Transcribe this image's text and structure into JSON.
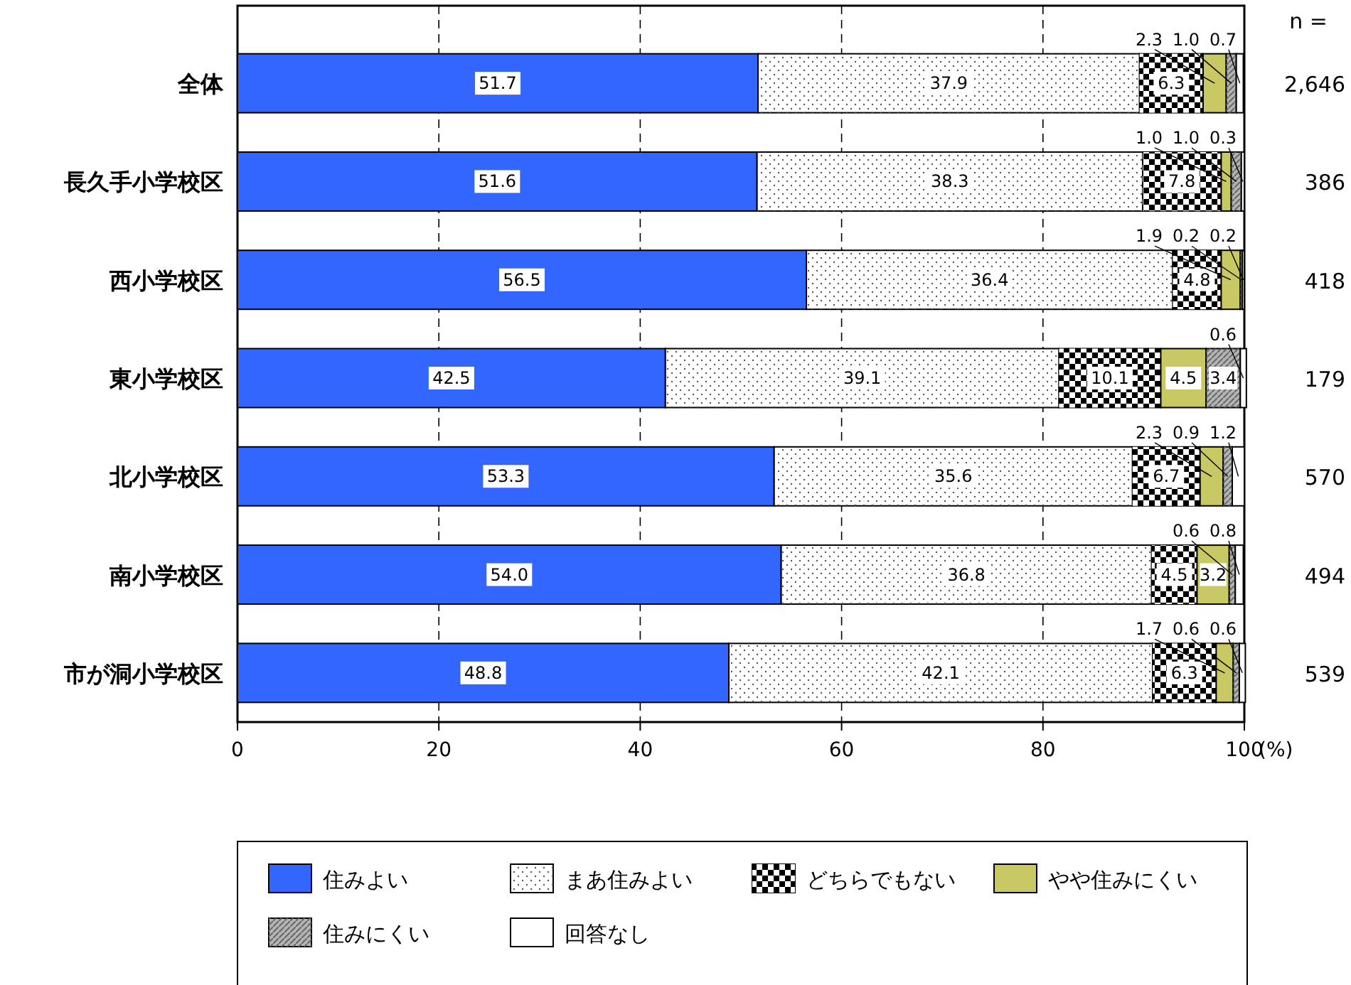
{
  "chart_data": {
    "type": "bar",
    "orientation": "horizontal",
    "stacked": true,
    "grid": "x",
    "legend": "bottom",
    "xlabel": "(%)",
    "categories": [
      "全体",
      "長久手小学校区",
      "西小学校区",
      "東小学校区",
      "北小学校区",
      "南小学校区",
      "市が洞小学校区"
    ],
    "xlim": [
      0,
      100
    ],
    "xticks": [
      0,
      20,
      40,
      60,
      80,
      100
    ],
    "annotations": [
      "n =",
      "2,646",
      "386",
      "418",
      "179",
      "570",
      "494",
      "539"
    ],
    "series": [
      {
        "name": "住みよい",
        "color": "#3366ff",
        "values": [
          51.7,
          51.6,
          56.5,
          42.5,
          53.3,
          54.0,
          48.8
        ],
        "value_labels": [
          "51.7",
          "51.6",
          "56.5",
          "42.5",
          "53.3",
          "54.0",
          "48.8"
        ]
      },
      {
        "name": "まあ住みよい",
        "color": "#ffffff",
        "values": [
          37.9,
          38.3,
          36.4,
          39.1,
          35.6,
          36.8,
          42.1
        ],
        "value_labels": [
          "37.9",
          "38.3",
          "36.4",
          "39.1",
          "35.6",
          "36.8",
          "42.1"
        ]
      },
      {
        "name": "どちらでもない",
        "color": "#000000",
        "values": [
          6.3,
          7.8,
          4.8,
          10.1,
          6.7,
          4.5,
          6.3
        ],
        "value_labels": [
          "6.3",
          "7.8",
          "4.8",
          "10.1",
          "6.7",
          "4.5",
          "6.3"
        ]
      },
      {
        "name": "やや住みにくい",
        "color": "#c8c864",
        "values": [
          2.3,
          1.0,
          1.9,
          4.5,
          2.3,
          3.2,
          1.7
        ],
        "value_labels": [
          "2.3",
          "1.0",
          "1.9",
          "4.5",
          "2.3",
          "3.2",
          "1.7"
        ]
      },
      {
        "name": "住みにくい",
        "color": "#b4b4b4",
        "values": [
          1.0,
          1.0,
          0.2,
          3.4,
          0.9,
          0.6,
          0.6
        ],
        "value_labels": [
          "1.0",
          "1.0",
          "0.2",
          "3.4",
          "0.9",
          "0.6",
          "0.6"
        ]
      },
      {
        "name": "回答なし",
        "color": "#ffffff",
        "values": [
          0.7,
          0.3,
          0.2,
          0.6,
          1.2,
          0.8,
          0.6
        ],
        "value_labels": [
          "0.7",
          "0.3",
          "0.2",
          "0.6",
          "1.2",
          "0.8",
          "0.6"
        ]
      }
    ]
  }
}
